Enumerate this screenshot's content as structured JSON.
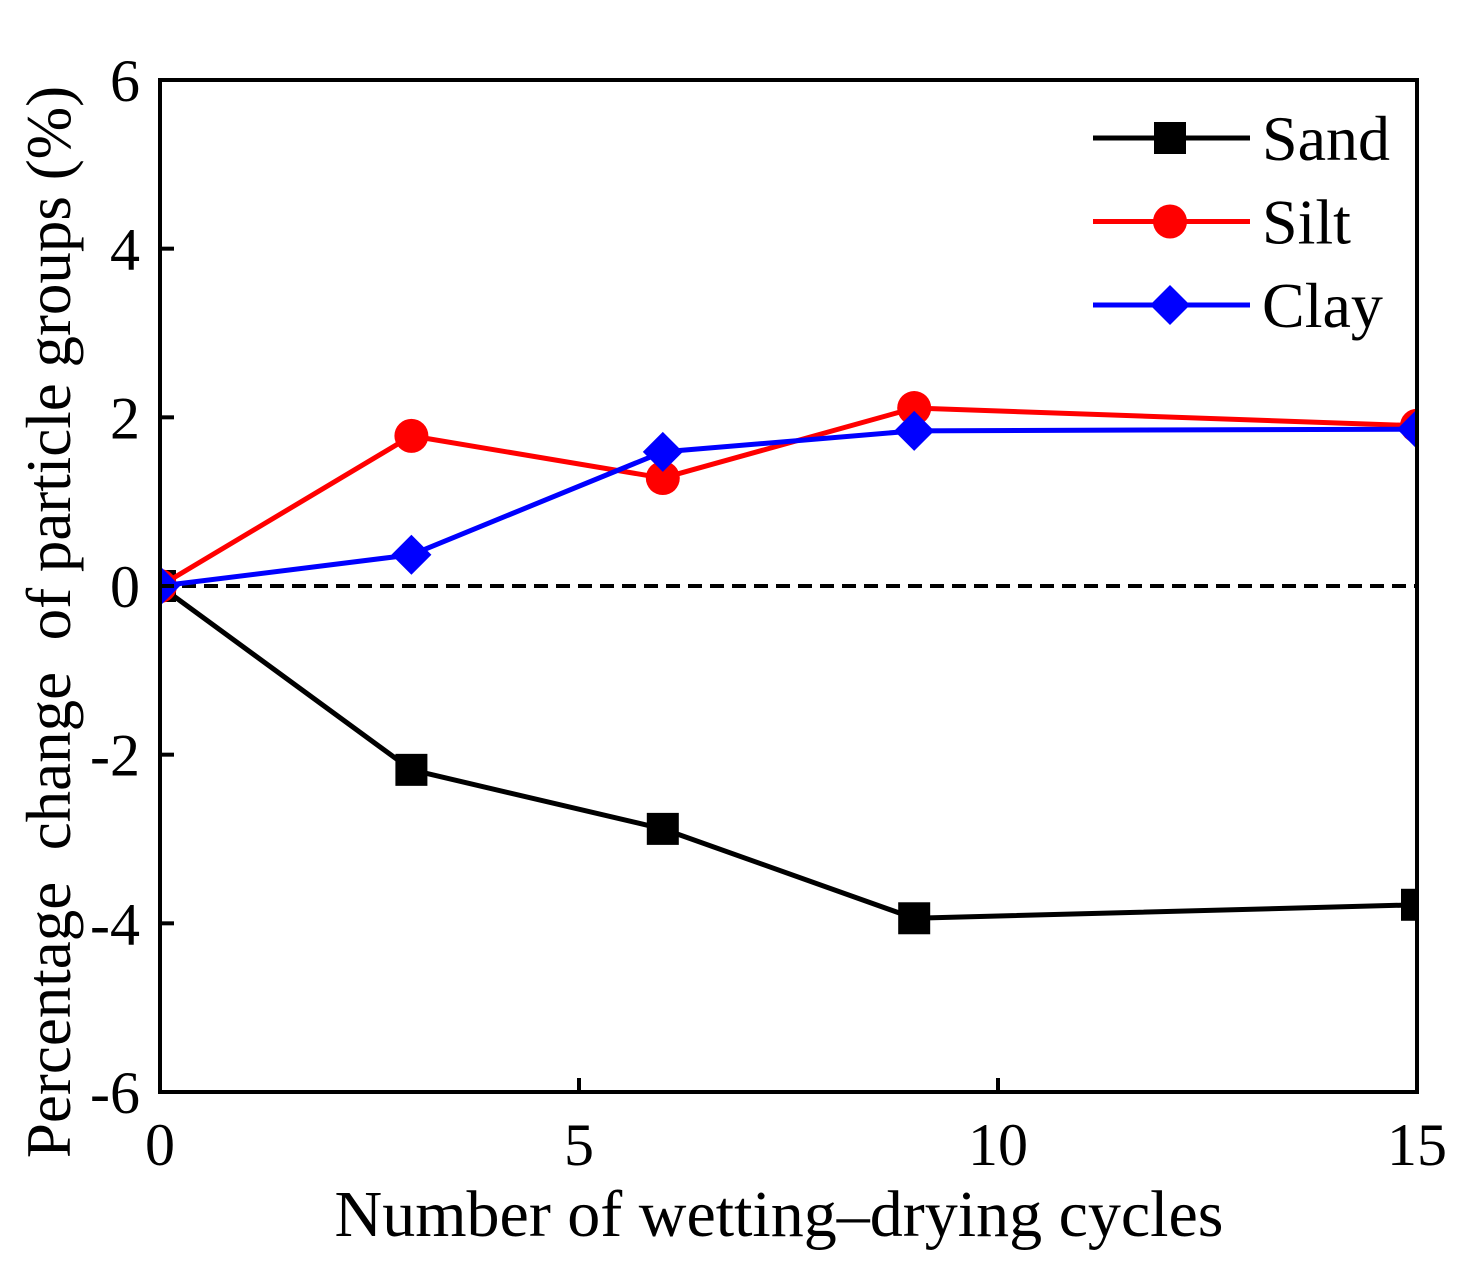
{
  "chart_data": {
    "type": "line",
    "title": "",
    "xlabel": "Number of wetting–drying cycles",
    "ylabel": "Percentage  change  of particle groups (%)",
    "xlim": [
      0,
      15
    ],
    "ylim": [
      -6,
      6
    ],
    "xticks": [
      0,
      5,
      10,
      15
    ],
    "yticks": [
      6,
      4,
      2,
      0,
      -2,
      -4,
      -6
    ],
    "x": [
      0,
      3,
      6,
      9,
      15
    ],
    "series": [
      {
        "name": "Sand",
        "color": "#000000",
        "marker": "square",
        "values": [
          0,
          -2.18,
          -2.88,
          -3.94,
          -3.78
        ]
      },
      {
        "name": "Silt",
        "color": "#ff0000",
        "marker": "circle",
        "values": [
          0,
          1.78,
          1.28,
          2.11,
          1.9
        ]
      },
      {
        "name": "Clay",
        "color": "#0000ff",
        "marker": "diamond",
        "values": [
          0,
          0.37,
          1.59,
          1.84,
          1.86
        ]
      }
    ],
    "reference_line": {
      "y": 0,
      "dashed": true,
      "color": "#000000"
    },
    "legend": {
      "position": "top-right"
    },
    "grid": false
  }
}
